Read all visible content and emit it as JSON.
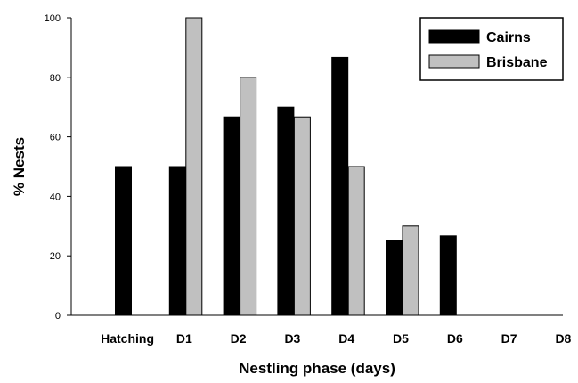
{
  "chart_data": {
    "type": "bar",
    "title": "",
    "xlabel": "Nestling phase (days)",
    "ylabel": "% Nests",
    "categories": [
      "Hatching",
      "D1",
      "D2",
      "D3",
      "D4",
      "D5",
      "D6",
      "D7",
      "D8"
    ],
    "yticks": [
      "0",
      "20",
      "40",
      "60",
      "80",
      "100"
    ],
    "ylim": [
      0,
      100
    ],
    "grid": false,
    "legend_position": "top-right",
    "series": [
      {
        "name": "Cairns",
        "color": "#000000",
        "values": [
          50,
          50,
          66.7,
          70,
          86.7,
          25,
          26.7,
          null,
          null
        ]
      },
      {
        "name": "Brisbane",
        "color": "#c0c0c0",
        "values": [
          null,
          100,
          80,
          66.7,
          50,
          30,
          null,
          null,
          null
        ]
      }
    ]
  }
}
